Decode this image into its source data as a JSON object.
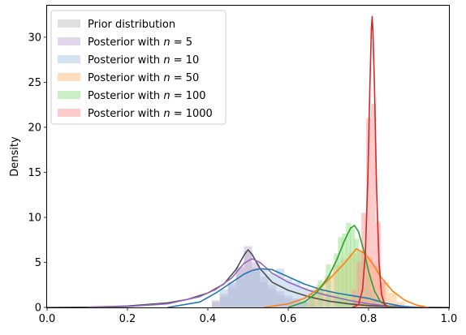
{
  "chart_data": {
    "type": "area",
    "title": "",
    "xlabel": "",
    "ylabel": "Density",
    "xlim": [
      0.0,
      1.0
    ],
    "ylim": [
      0,
      33.5
    ],
    "x_ticks": [
      0.0,
      0.2,
      0.4,
      0.6,
      0.8,
      1.0
    ],
    "x_tick_labels": [
      "0.0",
      "0.2",
      "0.4",
      "0.6",
      "0.8",
      "1.0"
    ],
    "y_ticks": [
      0,
      5,
      10,
      15,
      20,
      25,
      30
    ],
    "y_tick_labels": [
      "0",
      "5",
      "10",
      "15",
      "20",
      "25",
      "30"
    ],
    "grid": false,
    "legend_position": "top-left",
    "series": [
      {
        "name": "Prior distribution",
        "legend_prefix": "Prior distribution",
        "legend_n": "",
        "color": "#4d4d4d",
        "fill": "#bfbfbf",
        "bin_width": 0.02,
        "hist": [
          [
            0.42,
            0.6
          ],
          [
            0.44,
            1.2
          ],
          [
            0.46,
            2.2
          ],
          [
            0.48,
            4.4
          ],
          [
            0.5,
            6.2
          ],
          [
            0.52,
            4.4
          ],
          [
            0.54,
            2.8
          ],
          [
            0.56,
            2.0
          ],
          [
            0.58,
            1.4
          ],
          [
            0.6,
            1.0
          ],
          [
            0.62,
            0.8
          ],
          [
            0.64,
            0.6
          ],
          [
            0.66,
            0.4
          ]
        ],
        "kde": [
          [
            0.0,
            0.0
          ],
          [
            0.1,
            0.03
          ],
          [
            0.2,
            0.15
          ],
          [
            0.3,
            0.5
          ],
          [
            0.35,
            0.9
          ],
          [
            0.4,
            1.6
          ],
          [
            0.44,
            2.6
          ],
          [
            0.47,
            4.2
          ],
          [
            0.49,
            5.8
          ],
          [
            0.5,
            6.4
          ],
          [
            0.51,
            5.9
          ],
          [
            0.53,
            4.3
          ],
          [
            0.56,
            2.8
          ],
          [
            0.6,
            1.9
          ],
          [
            0.65,
            1.2
          ],
          [
            0.7,
            0.7
          ],
          [
            0.75,
            0.4
          ],
          [
            0.8,
            0.2
          ],
          [
            0.85,
            0.1
          ],
          [
            0.9,
            0.03
          ],
          [
            1.0,
            0.0
          ]
        ]
      },
      {
        "name": "Posterior with n = 5",
        "legend_prefix": "Posterior with ",
        "legend_n": "5",
        "color": "#9467bd",
        "fill": "#c5b0d5",
        "bin_width": 0.02,
        "hist": [
          [
            0.42,
            0.8
          ],
          [
            0.44,
            1.5
          ],
          [
            0.46,
            2.8
          ],
          [
            0.48,
            4.5
          ],
          [
            0.5,
            6.8
          ],
          [
            0.52,
            5.0
          ],
          [
            0.54,
            3.4
          ],
          [
            0.56,
            2.5
          ],
          [
            0.58,
            1.8
          ],
          [
            0.6,
            1.3
          ],
          [
            0.62,
            1.0
          ],
          [
            0.64,
            0.7
          ]
        ],
        "kde": [
          [
            0.1,
            0.0
          ],
          [
            0.2,
            0.1
          ],
          [
            0.3,
            0.4
          ],
          [
            0.38,
            1.2
          ],
          [
            0.42,
            2.0
          ],
          [
            0.46,
            3.3
          ],
          [
            0.49,
            4.9
          ],
          [
            0.51,
            5.4
          ],
          [
            0.53,
            5.0
          ],
          [
            0.56,
            3.8
          ],
          [
            0.6,
            2.8
          ],
          [
            0.65,
            1.9
          ],
          [
            0.7,
            1.3
          ],
          [
            0.75,
            0.8
          ],
          [
            0.8,
            0.4
          ],
          [
            0.85,
            0.15
          ],
          [
            0.9,
            0.05
          ],
          [
            0.95,
            0.0
          ]
        ]
      },
      {
        "name": "Posterior with n = 10",
        "legend_prefix": "Posterior with ",
        "legend_n": "10",
        "color": "#1f77b4",
        "fill": "#aec7e8",
        "bin_width": 0.02,
        "hist": [
          [
            0.44,
            2.0
          ],
          [
            0.46,
            2.6
          ],
          [
            0.48,
            3.2
          ],
          [
            0.5,
            3.8
          ],
          [
            0.52,
            4.2
          ],
          [
            0.54,
            4.2
          ],
          [
            0.56,
            3.8
          ],
          [
            0.58,
            4.3
          ],
          [
            0.6,
            3.2
          ],
          [
            0.62,
            2.8
          ],
          [
            0.64,
            2.2
          ],
          [
            0.66,
            2.0
          ],
          [
            0.68,
            1.8
          ],
          [
            0.7,
            1.6
          ],
          [
            0.72,
            1.4
          ],
          [
            0.74,
            1.2
          ]
        ],
        "kde": [
          [
            0.3,
            0.0
          ],
          [
            0.38,
            0.6
          ],
          [
            0.42,
            1.6
          ],
          [
            0.46,
            2.8
          ],
          [
            0.49,
            3.7
          ],
          [
            0.51,
            4.1
          ],
          [
            0.53,
            4.3
          ],
          [
            0.56,
            4.2
          ],
          [
            0.6,
            3.4
          ],
          [
            0.64,
            2.6
          ],
          [
            0.68,
            2.0
          ],
          [
            0.72,
            1.6
          ],
          [
            0.76,
            1.3
          ],
          [
            0.8,
            1.0
          ],
          [
            0.84,
            0.5
          ],
          [
            0.88,
            0.15
          ],
          [
            0.92,
            0.0
          ]
        ]
      },
      {
        "name": "Posterior with n = 50",
        "legend_prefix": "Posterior with ",
        "legend_n": "50",
        "color": "#ff7f0e",
        "fill": "#ffbb78",
        "bin_width": 0.02,
        "hist": [
          [
            0.66,
            1.5
          ],
          [
            0.68,
            2.5
          ],
          [
            0.7,
            3.5
          ],
          [
            0.72,
            4.8
          ],
          [
            0.74,
            5.4
          ],
          [
            0.76,
            6.0
          ],
          [
            0.78,
            6.3
          ],
          [
            0.8,
            5.6
          ],
          [
            0.82,
            4.6
          ],
          [
            0.84,
            2.8
          ],
          [
            0.86,
            1.6
          ],
          [
            0.88,
            0.6
          ]
        ],
        "kde": [
          [
            0.54,
            0.0
          ],
          [
            0.6,
            0.4
          ],
          [
            0.64,
            1.0
          ],
          [
            0.68,
            2.2
          ],
          [
            0.71,
            3.5
          ],
          [
            0.74,
            4.9
          ],
          [
            0.76,
            6.0
          ],
          [
            0.77,
            6.5
          ],
          [
            0.79,
            6.0
          ],
          [
            0.81,
            4.9
          ],
          [
            0.83,
            3.4
          ],
          [
            0.86,
            1.8
          ],
          [
            0.89,
            0.8
          ],
          [
            0.92,
            0.25
          ],
          [
            0.95,
            0.0
          ]
        ]
      },
      {
        "name": "Posterior with n = 100",
        "legend_prefix": "Posterior with ",
        "legend_n": "100",
        "color": "#2ca02c",
        "fill": "#98df8a",
        "bin_width": 0.0125,
        "hist": [
          [
            0.64,
            0.8
          ],
          [
            0.66,
            1.6
          ],
          [
            0.68,
            3.0
          ],
          [
            0.7,
            4.8
          ],
          [
            0.72,
            6.0
          ],
          [
            0.73,
            7.8
          ],
          [
            0.74,
            8.2
          ],
          [
            0.75,
            9.4
          ],
          [
            0.76,
            8.8
          ],
          [
            0.77,
            7.6
          ],
          [
            0.78,
            6.2
          ],
          [
            0.79,
            5.2
          ],
          [
            0.8,
            3.6
          ],
          [
            0.81,
            2.0
          ],
          [
            0.82,
            1.0
          ]
        ],
        "kde": [
          [
            0.6,
            0.0
          ],
          [
            0.64,
            0.6
          ],
          [
            0.67,
            1.6
          ],
          [
            0.7,
            3.4
          ],
          [
            0.72,
            5.2
          ],
          [
            0.74,
            7.4
          ],
          [
            0.755,
            8.8
          ],
          [
            0.765,
            9.1
          ],
          [
            0.775,
            8.4
          ],
          [
            0.79,
            6.0
          ],
          [
            0.8,
            4.0
          ],
          [
            0.815,
            1.8
          ],
          [
            0.83,
            0.6
          ],
          [
            0.85,
            0.1
          ],
          [
            0.87,
            0.0
          ]
        ]
      },
      {
        "name": "Posterior with n = 1000",
        "legend_prefix": "Posterior with ",
        "legend_n": "1000",
        "color": "#d62728",
        "fill": "#ff9896",
        "bin_width": 0.012,
        "hist": [
          [
            0.764,
            2.0
          ],
          [
            0.776,
            5.0
          ],
          [
            0.788,
            10.5
          ],
          [
            0.8,
            21.0
          ],
          [
            0.812,
            22.6
          ],
          [
            0.824,
            9.5
          ],
          [
            0.836,
            3.0
          ]
        ],
        "kde": [
          [
            0.76,
            0.0
          ],
          [
            0.775,
            0.3
          ],
          [
            0.785,
            2.0
          ],
          [
            0.792,
            6.0
          ],
          [
            0.798,
            14.0
          ],
          [
            0.803,
            24.0
          ],
          [
            0.807,
            31.0
          ],
          [
            0.809,
            32.3
          ],
          [
            0.811,
            30.5
          ],
          [
            0.815,
            24.0
          ],
          [
            0.82,
            13.0
          ],
          [
            0.826,
            5.0
          ],
          [
            0.832,
            1.5
          ],
          [
            0.84,
            0.3
          ],
          [
            0.85,
            0.0
          ]
        ]
      }
    ]
  }
}
